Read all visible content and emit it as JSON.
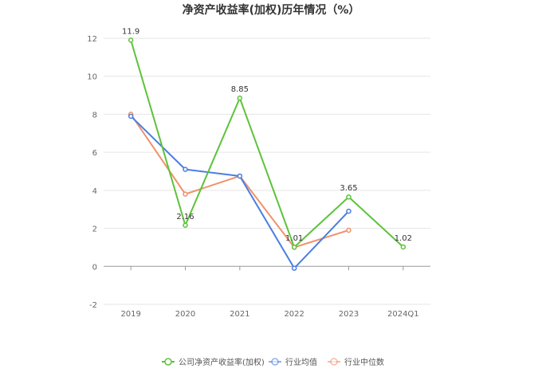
{
  "chart_data": {
    "type": "line",
    "title": "净资产收益率(加权)历年情况（%）",
    "categories": [
      "2019",
      "2020",
      "2021",
      "2022",
      "2023",
      "2024Q1"
    ],
    "ylim": [
      -2,
      12
    ],
    "yticks": [
      "-2",
      "0",
      "2",
      "4",
      "6",
      "8",
      "10",
      "12"
    ],
    "grid": true,
    "legend_position": "bottom-center",
    "series": [
      {
        "name": "公司净资产收益率(加权)",
        "color": "#5cc33a",
        "values": [
          11.9,
          2.16,
          8.85,
          1.01,
          3.65,
          1.02
        ],
        "labels": [
          "11.9",
          "2.16",
          "8.85",
          "1.01",
          "3.65",
          "1.02"
        ]
      },
      {
        "name": "行业均值",
        "color": "#4a7ee0",
        "values": [
          7.9,
          5.1,
          4.75,
          -0.1,
          2.9,
          null
        ]
      },
      {
        "name": "行业中位数",
        "color": "#f0916a",
        "values": [
          8.0,
          3.8,
          4.75,
          1.0,
          1.9,
          null
        ]
      }
    ]
  }
}
